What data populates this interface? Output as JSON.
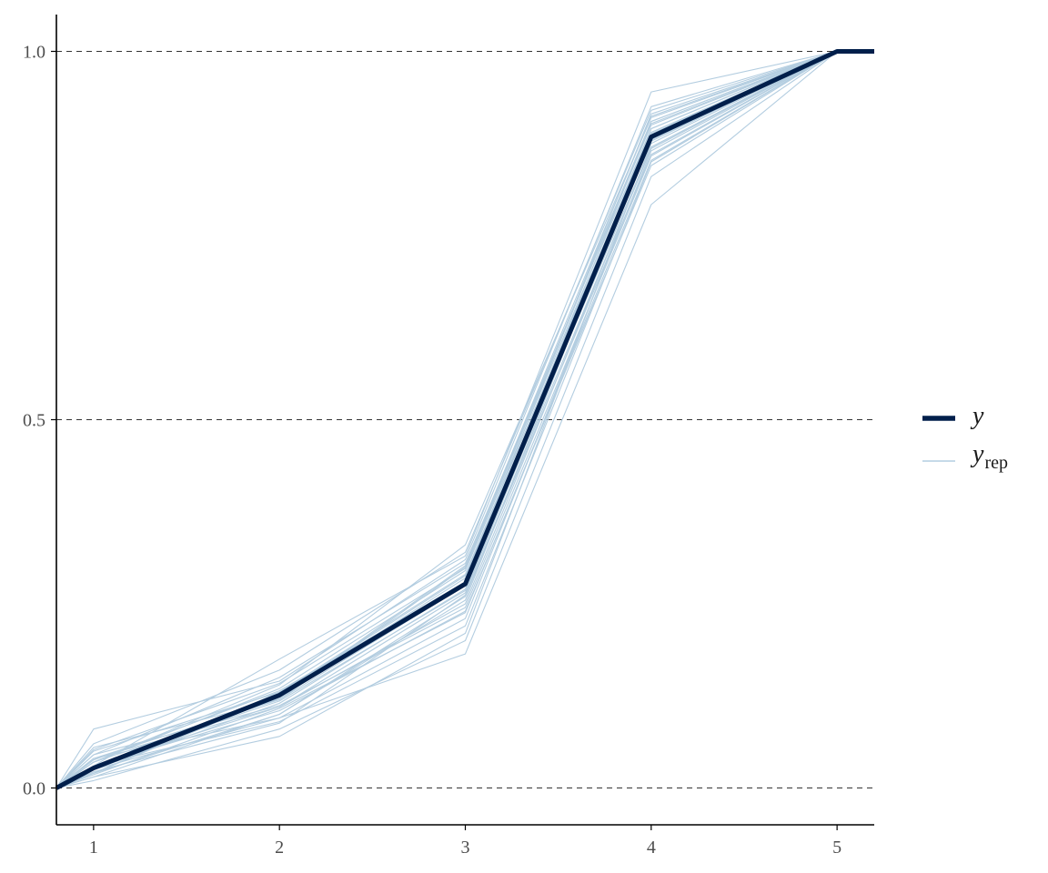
{
  "chart_data": {
    "type": "line",
    "title": "",
    "xlabel": "",
    "ylabel": "",
    "x": [
      0.8,
      1,
      2,
      3,
      4,
      5,
      5.2
    ],
    "xlim": [
      0.8,
      5.2
    ],
    "ylim": [
      -0.05,
      1.05
    ],
    "xticks": [
      1,
      2,
      3,
      4,
      5
    ],
    "xtick_labels": [
      "1",
      "2",
      "3",
      "4",
      "5"
    ],
    "yticks": [
      0.0,
      0.5,
      1.0
    ],
    "ytick_labels": [
      "0.0",
      "0.5",
      "1.0"
    ],
    "hlines": [
      0.0,
      0.5,
      1.0
    ],
    "grid": "dashed horizontal reference lines",
    "legend_position": "right",
    "legend": [
      {
        "key": "y",
        "symbol": "y",
        "subscript": ""
      },
      {
        "key": "yrep",
        "symbol": "y",
        "subscript": "rep"
      }
    ],
    "colors": {
      "y": "#011f4b",
      "yrep": "#b3cde0",
      "reference": "#333333",
      "axis": "#000000"
    },
    "series": [
      {
        "name": "y",
        "role": "observed",
        "values": [
          0,
          0.027,
          0.126,
          0.277,
          0.884,
          1,
          1
        ]
      }
    ],
    "replicates": [
      [
        0,
        0.08,
        0.145,
        0.31,
        0.925,
        1,
        1
      ],
      [
        0,
        0.055,
        0.12,
        0.3,
        0.905,
        1,
        1
      ],
      [
        0,
        0.04,
        0.11,
        0.25,
        0.87,
        1,
        1
      ],
      [
        0,
        0.03,
        0.09,
        0.22,
        0.85,
        1,
        1
      ],
      [
        0,
        0.02,
        0.13,
        0.29,
        0.89,
        1,
        1
      ],
      [
        0,
        0.015,
        0.1,
        0.26,
        0.86,
        1,
        1
      ],
      [
        0,
        0.035,
        0.14,
        0.33,
        0.91,
        1,
        1
      ],
      [
        0,
        0.025,
        0.115,
        0.27,
        0.88,
        1,
        1
      ],
      [
        0,
        0.01,
        0.08,
        0.2,
        0.83,
        1,
        1
      ],
      [
        0,
        0.045,
        0.15,
        0.305,
        0.9,
        1,
        1
      ],
      [
        0,
        0.03,
        0.105,
        0.24,
        0.845,
        1,
        1
      ],
      [
        0,
        0.02,
        0.125,
        0.285,
        0.915,
        1,
        1
      ],
      [
        0,
        0.06,
        0.16,
        0.32,
        0.92,
        1,
        1
      ],
      [
        0,
        0.025,
        0.095,
        0.23,
        0.865,
        1,
        1
      ],
      [
        0,
        0.035,
        0.135,
        0.295,
        0.895,
        1,
        1
      ],
      [
        0,
        0.015,
        0.07,
        0.21,
        0.875,
        1,
        1
      ],
      [
        0,
        0.04,
        0.12,
        0.275,
        0.905,
        1,
        1
      ],
      [
        0,
        0.03,
        0.11,
        0.265,
        0.885,
        1,
        1
      ],
      [
        0,
        0.05,
        0.13,
        0.28,
        0.87,
        1,
        1
      ],
      [
        0,
        0.02,
        0.1,
        0.255,
        0.89,
        1,
        1
      ],
      [
        0,
        0.035,
        0.118,
        0.268,
        0.895,
        1,
        1
      ],
      [
        0,
        0.025,
        0.128,
        0.288,
        0.878,
        1,
        1
      ],
      [
        0,
        0.045,
        0.112,
        0.245,
        0.858,
        1,
        1
      ],
      [
        0,
        0.03,
        0.122,
        0.302,
        0.912,
        1,
        1
      ],
      [
        0,
        0.04,
        0.095,
        0.182,
        0.792,
        1,
        1
      ],
      [
        0,
        0.03,
        0.175,
        0.315,
        0.945,
        1,
        1
      ],
      [
        0,
        0.022,
        0.088,
        0.262,
        0.868,
        1,
        1
      ],
      [
        0,
        0.052,
        0.142,
        0.298,
        0.902,
        1,
        1
      ],
      [
        0,
        0.018,
        0.108,
        0.238,
        0.852,
        1,
        1
      ],
      [
        0,
        0.038,
        0.132,
        0.278,
        0.888,
        1,
        1
      ]
    ]
  }
}
